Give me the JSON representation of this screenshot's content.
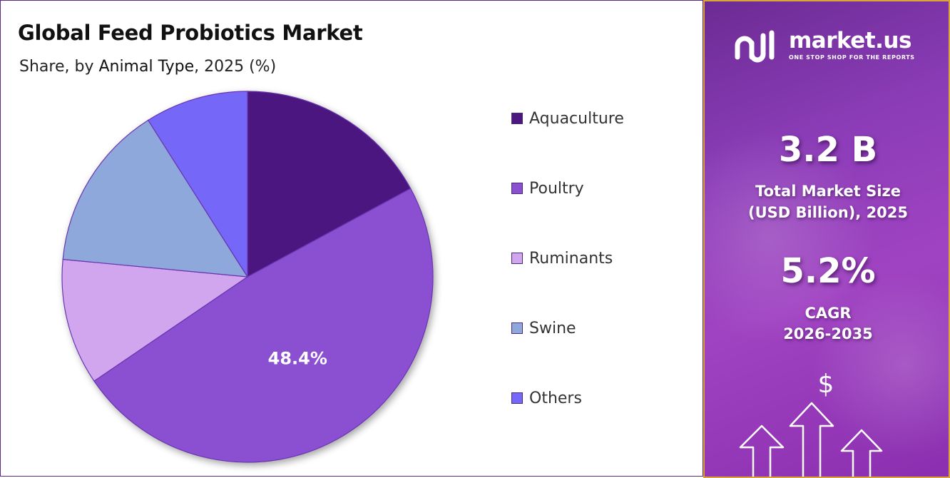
{
  "chart_data": {
    "type": "pie",
    "title": "Global Feed Probiotics Market",
    "subtitle_parts": [
      "Share, by ",
      "Animal Type",
      ", 2025 (%)"
    ],
    "categories": [
      "Aquaculture",
      "Poultry",
      "Ruminants",
      "Swine",
      "Others"
    ],
    "values": [
      17.1,
      48.4,
      11.0,
      14.5,
      9.0
    ],
    "colors": [
      "#4c1780",
      "#8b50d1",
      "#d1a6ee",
      "#8ea8dc",
      "#7467f9"
    ],
    "labeled_slice": {
      "category": "Poultry",
      "label": "48.4%"
    },
    "legend_position": "right"
  },
  "info": {
    "brand": "market.us",
    "tagline": "ONE STOP SHOP FOR THE REPORTS",
    "market_size_value": "3.2 B",
    "market_size_label_1": "Total Market Size",
    "market_size_label_2": "(USD Billion), 2025",
    "cagr_value": "5.2%",
    "cagr_label_1": "CAGR",
    "cagr_label_2": "2026-2035",
    "currency_symbol": "$"
  },
  "colors": {
    "panel_accent": "#8a3cb6",
    "panel_border": "#d9a53b",
    "chart_border": "#5b2a86"
  }
}
